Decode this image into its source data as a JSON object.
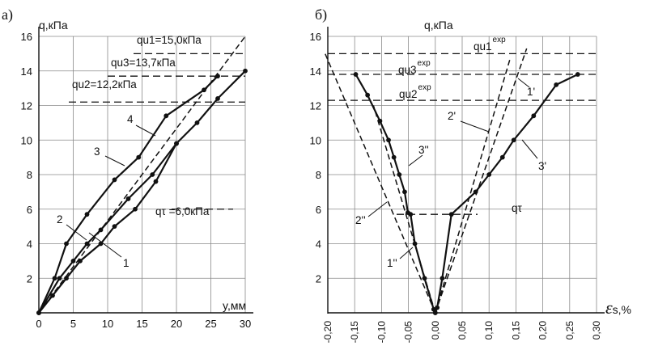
{
  "chart_data": [
    {
      "panel_label": "а)",
      "type": "line",
      "ylabel": "q,кПа",
      "xlabel": "y,мм",
      "xlim": [
        0,
        30
      ],
      "ylim": [
        0,
        16
      ],
      "xticks": [
        0,
        5,
        10,
        15,
        20,
        25,
        30
      ],
      "yticks": [
        2,
        4,
        6,
        8,
        10,
        12,
        14,
        16
      ],
      "grid": true,
      "series": [
        {
          "name": "1",
          "style": "solid",
          "x": [
            0,
            2,
            4,
            6,
            9,
            11,
            14,
            17,
            20,
            23,
            26,
            30
          ],
          "y": [
            0,
            1,
            2,
            3,
            4,
            5,
            6,
            7.6,
            9.8,
            11,
            12.4,
            14
          ]
        },
        {
          "name": "2",
          "style": "solid",
          "x": [
            0,
            3,
            5,
            7,
            9,
            13,
            16.5,
            20
          ],
          "y": [
            0,
            2,
            3,
            4,
            4.8,
            6.6,
            8,
            9.8
          ]
        },
        {
          "name": "3",
          "style": "solid",
          "x": [
            0,
            2.3,
            4,
            7,
            11,
            14.5,
            18.5,
            24,
            26
          ],
          "y": [
            0,
            2,
            4,
            5.7,
            7.7,
            9,
            11.4,
            12.9,
            13.7
          ]
        },
        {
          "name": "4",
          "style": "dashed",
          "x": [
            0,
            30
          ],
          "y": [
            0,
            16
          ]
        }
      ],
      "hlines": [
        {
          "label": "qu1=15,0кПа",
          "y": 15.0
        },
        {
          "label": "qu3=13,7кПа",
          "y": 13.7
        },
        {
          "label": "qu2=12,2кПа",
          "y": 12.2
        }
      ],
      "annotations": [
        {
          "text": "qτ =6,0кПа",
          "y": 6.0
        }
      ]
    },
    {
      "panel_label": "б)",
      "type": "line",
      "ylabel": "q,кПа",
      "xlabel": "εs,%",
      "xlim": [
        -0.2,
        0.3
      ],
      "ylim": [
        0,
        16
      ],
      "xticks": [
        "-0,20",
        "-0,15",
        "-0,10",
        "-0,05",
        "0,00",
        "0,05",
        "0,10",
        "0,15",
        "0,20",
        "0,25",
        "0,30"
      ],
      "yticks": [
        2,
        4,
        6,
        8,
        10,
        12,
        14,
        16
      ],
      "grid": true,
      "series": [
        {
          "name": "3''",
          "style": "solid",
          "x": [
            -0.148,
            -0.126,
            -0.103,
            -0.087,
            -0.077,
            -0.067,
            -0.057,
            -0.051,
            -0.046,
            -0.038,
            -0.02,
            -0.003,
            0.0
          ],
          "y": [
            13.8,
            12.6,
            11.1,
            10,
            9,
            8,
            7,
            5.8,
            5.7,
            4,
            2,
            0.2,
            0
          ]
        },
        {
          "name": "3'",
          "style": "solid",
          "x": [
            0,
            0.0035,
            0.013,
            0.03,
            0.075,
            0.1,
            0.125,
            0.146,
            0.183,
            0.225,
            0.265
          ],
          "y": [
            0,
            0.3,
            2,
            5.7,
            7,
            8,
            9,
            10,
            11.4,
            13.2,
            13.8
          ]
        },
        {
          "name": "1'",
          "style": "dashed",
          "x": [
            0,
            0.17
          ],
          "y": [
            0,
            15.3
          ]
        },
        {
          "name": "2'",
          "style": "dashed",
          "x": [
            0,
            0.14
          ],
          "y": [
            0,
            14.8
          ]
        },
        {
          "name": "1''",
          "style": "dashed",
          "x": [
            0,
            -0.205
          ],
          "y": [
            0,
            15.0
          ]
        },
        {
          "name": "2''",
          "style": "dashed",
          "x": [
            0,
            -0.115
          ],
          "y": [
            0,
            12.0
          ]
        }
      ],
      "hlines": [
        {
          "label": "qu1",
          "sup": "exp",
          "y": 15.0
        },
        {
          "label": "qu3",
          "sup": "exp",
          "y": 13.8
        },
        {
          "label": "qu2",
          "sup": "exp",
          "y": 12.3
        }
      ],
      "annotations": [
        {
          "text": "qτ",
          "y": 5.7
        }
      ]
    }
  ]
}
